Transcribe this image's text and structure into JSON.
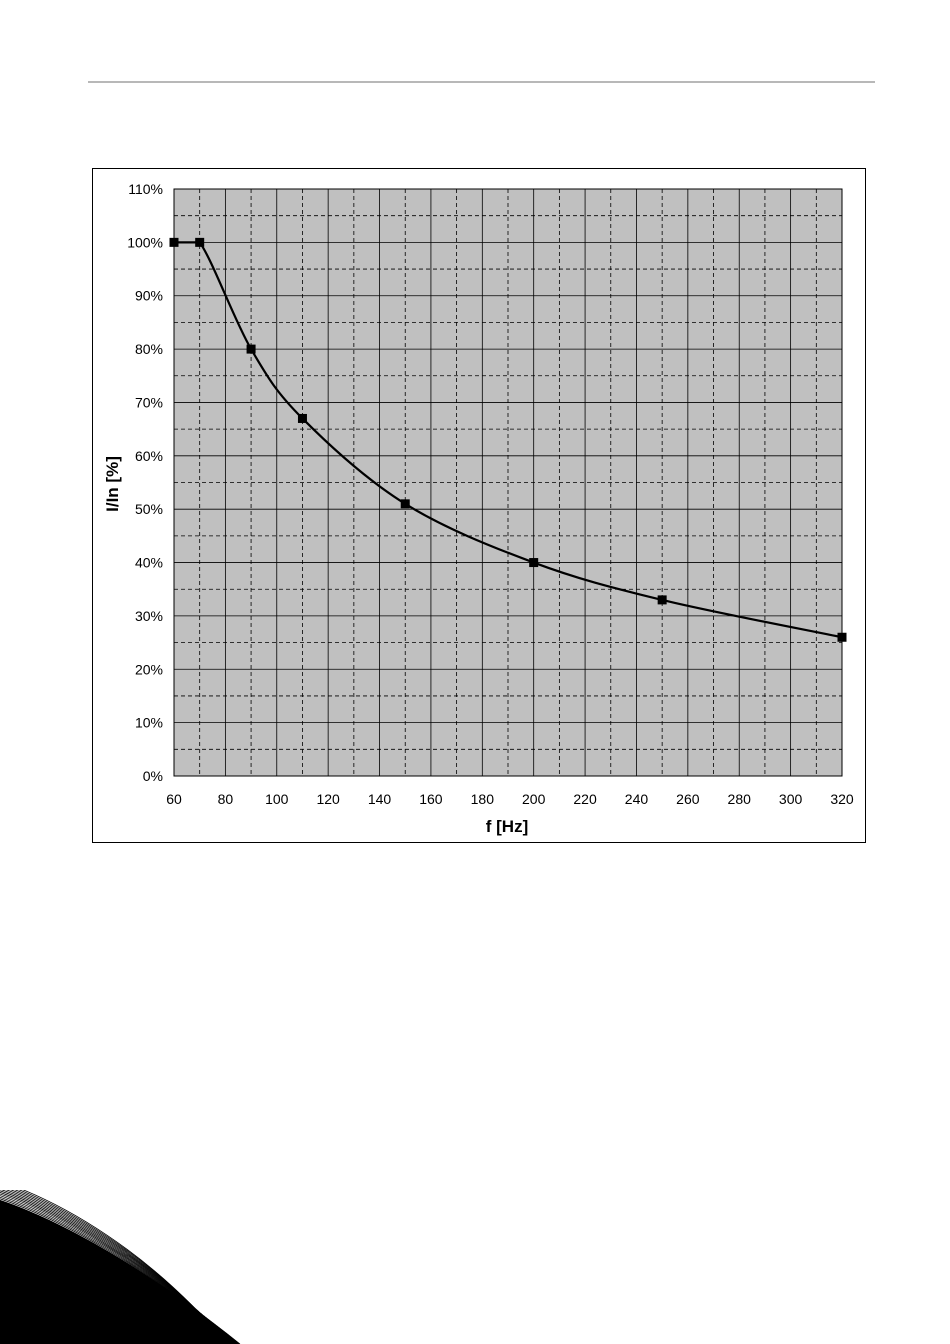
{
  "chart_data": {
    "type": "line",
    "title": "",
    "xlabel": "f [Hz]",
    "ylabel": "I/In [%]",
    "xlim": [
      60,
      320
    ],
    "ylim": [
      0,
      110
    ],
    "xticks": [
      60,
      80,
      100,
      120,
      140,
      160,
      180,
      200,
      220,
      240,
      260,
      280,
      300,
      320
    ],
    "xtick_labels": [
      "60",
      "80",
      "100",
      "120",
      "140",
      "160",
      "180",
      "200",
      "220",
      "240",
      "260",
      "280",
      "300",
      "320"
    ],
    "yticks": [
      0,
      10,
      20,
      30,
      40,
      50,
      60,
      70,
      80,
      90,
      100,
      110
    ],
    "ytick_labels": [
      "0%",
      "10%",
      "20%",
      "30%",
      "40%",
      "50%",
      "60%",
      "70%",
      "80%",
      "90%",
      "100%",
      "110%"
    ],
    "grid": true,
    "legend": "none",
    "series": [
      {
        "x": [
          60,
          70,
          90,
          110,
          150,
          200,
          250,
          320
        ],
        "y": [
          100,
          100,
          80,
          67,
          51,
          40,
          33,
          26
        ],
        "marker": "square",
        "color": "#000000"
      }
    ],
    "colors": {
      "plot_bg": "#c0c0c0",
      "line": "#000000"
    }
  }
}
